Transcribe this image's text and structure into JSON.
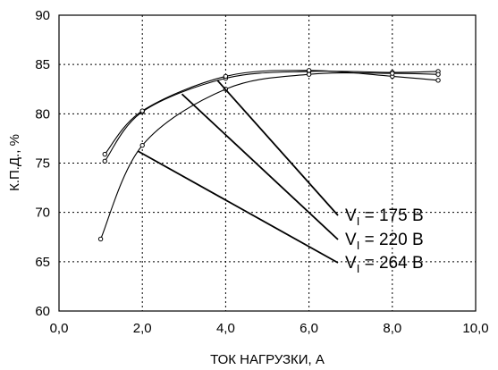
{
  "chart_data": {
    "type": "line",
    "title": "",
    "xlabel": "ТОК НАГРУЗКИ, А",
    "ylabel": "К.П.Д., %",
    "xlim": [
      0,
      10
    ],
    "ylim": [
      60,
      90
    ],
    "xticks": [
      "0,0",
      "2,0",
      "4,0",
      "6,0",
      "8,0",
      "10,0"
    ],
    "yticks": [
      "60",
      "65",
      "70",
      "75",
      "80",
      "85",
      "90"
    ],
    "grid": true,
    "series": [
      {
        "name": "175 В",
        "label_main": "V",
        "label_sub": "I",
        "label_rest": " = 175 В",
        "anchor": [
          3.8,
          83.4
        ],
        "x": [
          1.1,
          2.0,
          4.0,
          6.0,
          8.0,
          9.1
        ],
        "y": [
          75.2,
          80.2,
          83.6,
          84.3,
          84.2,
          84.3
        ]
      },
      {
        "name": "220 В",
        "label_main": "V",
        "label_sub": "I",
        "label_rest": " = 220 В",
        "anchor": [
          2.95,
          82.0
        ],
        "x": [
          1.1,
          2.0,
          4.0,
          6.0,
          8.0,
          9.1
        ],
        "y": [
          75.9,
          80.3,
          83.8,
          84.4,
          83.8,
          83.4
        ]
      },
      {
        "name": "264 В",
        "label_main": "V",
        "label_sub": "I",
        "label_rest": " = 264 В",
        "anchor": [
          1.9,
          76.2
        ],
        "x": [
          1.0,
          2.0,
          4.0,
          6.0,
          8.0,
          9.1
        ],
        "y": [
          67.3,
          76.8,
          82.5,
          84.0,
          84.1,
          84.0
        ]
      }
    ]
  }
}
